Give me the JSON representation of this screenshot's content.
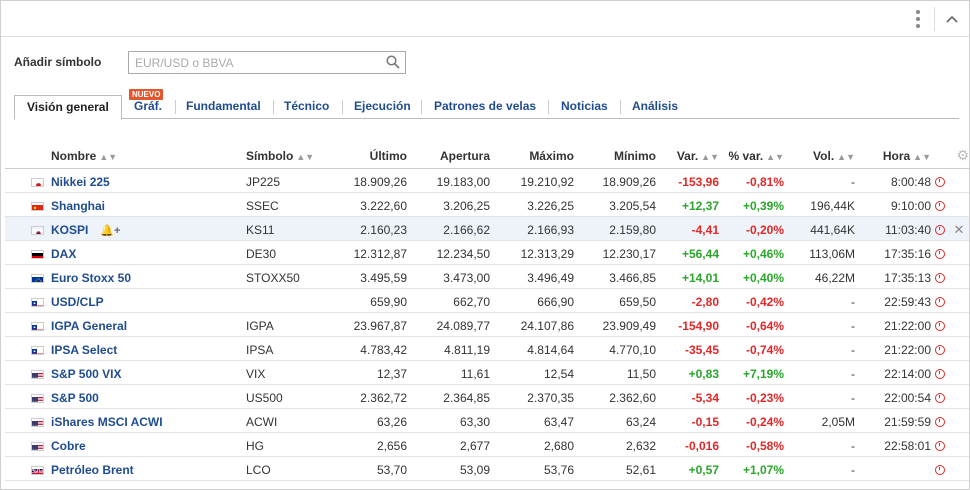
{
  "header": {
    "menu_icon": "kebab-menu-icon",
    "collapse_icon": "chevron-up-icon"
  },
  "search": {
    "label": "Añadir símbolo",
    "placeholder": "EUR/USD o BBVA",
    "value": ""
  },
  "tabs": [
    {
      "label": "Visión general",
      "active": true
    },
    {
      "label": "Gráf.",
      "badge": "NUEVO"
    },
    {
      "label": "Fundamental"
    },
    {
      "label": "Técnico"
    },
    {
      "label": "Ejecución"
    },
    {
      "label": "Patrones de velas"
    },
    {
      "label": "Noticias"
    },
    {
      "label": "Análisis"
    }
  ],
  "columns": {
    "name": "Nombre",
    "symbol": "Símbolo",
    "last": "Último",
    "open": "Apertura",
    "high": "Máximo",
    "low": "Mínimo",
    "change": "Var.",
    "pct": "% var.",
    "vol": "Vol.",
    "time": "Hora"
  },
  "colors": {
    "positive": "#2aa52a",
    "negative": "#e02828",
    "link": "#1f4c8f"
  },
  "rows": [
    {
      "flag": "jp",
      "name": "Nikkei 225",
      "symbol": "JP225",
      "last": "18.909,26",
      "open": "19.183,00",
      "high": "19.210,92",
      "low": "18.909,26",
      "change": "-153,96",
      "pct": "-0,81%",
      "vol": "-",
      "time": "8:00:48",
      "dir": "neg"
    },
    {
      "flag": "cn",
      "name": "Shanghai",
      "symbol": "SSEC",
      "last": "3.222,60",
      "open": "3.206,25",
      "high": "3.226,25",
      "low": "3.205,54",
      "change": "+12,37",
      "pct": "+0,39%",
      "vol": "196,44K",
      "time": "9:10:00",
      "dir": "pos"
    },
    {
      "flag": "kr",
      "name": "KOSPI",
      "symbol": "KS11",
      "last": "2.160,23",
      "open": "2.166,62",
      "high": "2.166,93",
      "low": "2.159,80",
      "change": "-4,41",
      "pct": "-0,20%",
      "vol": "441,64K",
      "time": "11:03:40",
      "dir": "neg",
      "highlight": true
    },
    {
      "flag": "de",
      "name": "DAX",
      "symbol": "DE30",
      "last": "12.312,87",
      "open": "12.234,50",
      "high": "12.313,29",
      "low": "12.230,17",
      "change": "+56,44",
      "pct": "+0,46%",
      "vol": "113,06M",
      "time": "17:35:16",
      "dir": "pos"
    },
    {
      "flag": "eu",
      "name": "Euro Stoxx 50",
      "symbol": "STOXX50",
      "last": "3.495,59",
      "open": "3.473,00",
      "high": "3.496,49",
      "low": "3.466,85",
      "change": "+14,01",
      "pct": "+0,40%",
      "vol": "46,22M",
      "time": "17:35:13",
      "dir": "pos"
    },
    {
      "flag": "cl",
      "name": "USD/CLP",
      "symbol": "",
      "last": "659,90",
      "open": "662,70",
      "high": "666,90",
      "low": "659,50",
      "change": "-2,80",
      "pct": "-0,42%",
      "vol": "-",
      "time": "22:59:43",
      "dir": "neg"
    },
    {
      "flag": "cl",
      "name": "IGPA General",
      "symbol": "IGPA",
      "last": "23.967,87",
      "open": "24.089,77",
      "high": "24.107,86",
      "low": "23.909,49",
      "change": "-154,90",
      "pct": "-0,64%",
      "vol": "-",
      "time": "21:22:00",
      "dir": "neg"
    },
    {
      "flag": "cl",
      "name": "IPSA Select",
      "symbol": "IPSA",
      "last": "4.783,42",
      "open": "4.811,19",
      "high": "4.814,64",
      "low": "4.770,10",
      "change": "-35,45",
      "pct": "-0,74%",
      "vol": "-",
      "time": "21:22:00",
      "dir": "neg"
    },
    {
      "flag": "us",
      "name": "S&P 500 VIX",
      "symbol": "VIX",
      "last": "12,37",
      "open": "11,61",
      "high": "12,54",
      "low": "11,50",
      "change": "+0,83",
      "pct": "+7,19%",
      "vol": "-",
      "time": "22:14:00",
      "dir": "pos"
    },
    {
      "flag": "us",
      "name": "S&P 500",
      "symbol": "US500",
      "last": "2.362,72",
      "open": "2.364,85",
      "high": "2.370,35",
      "low": "2.362,60",
      "change": "-5,34",
      "pct": "-0,23%",
      "vol": "-",
      "time": "22:00:54",
      "dir": "neg"
    },
    {
      "flag": "us",
      "name": "iShares MSCI ACWI",
      "symbol": "ACWI",
      "last": "63,26",
      "open": "63,30",
      "high": "63,47",
      "low": "63,24",
      "change": "-0,15",
      "pct": "-0,24%",
      "vol": "2,05M",
      "time": "21:59:59",
      "dir": "neg"
    },
    {
      "flag": "us",
      "name": "Cobre",
      "symbol": "HG",
      "last": "2,656",
      "open": "2,677",
      "high": "2,680",
      "low": "2,632",
      "change": "-0,016",
      "pct": "-0,58%",
      "vol": "-",
      "time": "22:58:01",
      "dir": "neg"
    },
    {
      "flag": "gb",
      "name": "Petróleo Brent",
      "symbol": "LCO",
      "last": "53,70",
      "open": "53,09",
      "high": "53,76",
      "low": "52,61",
      "change": "+0,57",
      "pct": "+1,07%",
      "vol": "-",
      "time": "",
      "dir": "pos"
    }
  ]
}
